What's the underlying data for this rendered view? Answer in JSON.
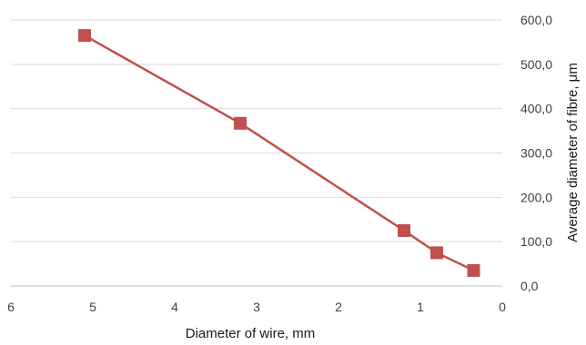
{
  "chart_data": {
    "type": "line",
    "xlabel": "Diameter of wire, mm",
    "ylabel": "Average diameter of fibre, μm",
    "x_axis_reversed": true,
    "y_axis_position": "right",
    "xlim": [
      0,
      6
    ],
    "ylim": [
      0,
      600
    ],
    "x_ticks": [
      "6",
      "5",
      "4",
      "3",
      "2",
      "1",
      "0"
    ],
    "y_ticks": [
      "0,0",
      "100,0",
      "200,0",
      "300,0",
      "400,0",
      "500,0",
      "600,0"
    ],
    "grid": "horizontal",
    "series": [
      {
        "color": "#c0504d",
        "marker": "square",
        "points": [
          {
            "x": 5.1,
            "y": 565
          },
          {
            "x": 3.2,
            "y": 367
          },
          {
            "x": 1.2,
            "y": 125
          },
          {
            "x": 0.8,
            "y": 75
          },
          {
            "x": 0.35,
            "y": 35
          }
        ]
      }
    ]
  }
}
